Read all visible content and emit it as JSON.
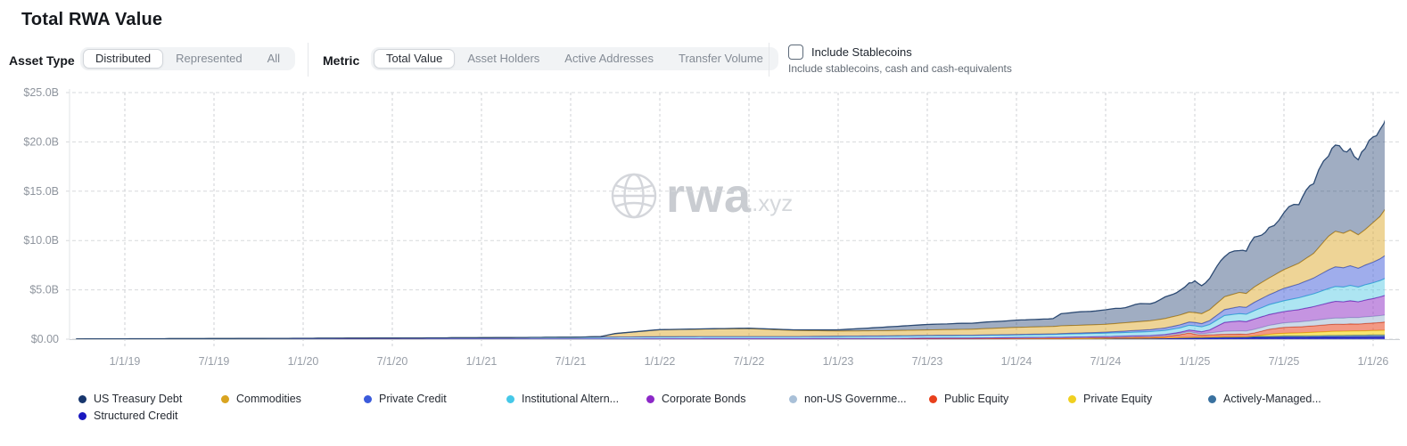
{
  "header": {
    "title": "Total RWA Value"
  },
  "controls": {
    "asset_type": {
      "label": "Asset Type",
      "options": [
        {
          "label": "Distributed",
          "selected": true
        },
        {
          "label": "Represented",
          "selected": false
        },
        {
          "label": "All",
          "selected": false
        }
      ]
    },
    "metric": {
      "label": "Metric",
      "options": [
        {
          "label": "Total Value",
          "selected": true
        },
        {
          "label": "Asset Holders",
          "selected": false
        },
        {
          "label": "Active Addresses",
          "selected": false
        },
        {
          "label": "Transfer Volume",
          "selected": false
        }
      ]
    },
    "stablecoins": {
      "label": "Include Stablecoins",
      "sublabel": "Include stablecoins, cash and cash-equivalents",
      "checked": false
    }
  },
  "watermark": {
    "brand": "rwa",
    "tld": ".xyz"
  },
  "chart_data": {
    "type": "area",
    "stacked": true,
    "title": "Total RWA Value",
    "unit": "USD billions",
    "grid": "dashed",
    "legend_position": "bottom",
    "ylim": [
      0,
      25
    ],
    "y_ticks": {
      "values": [
        25,
        20,
        15,
        10,
        5,
        0
      ],
      "labels": [
        "$25.0B",
        "$20.0B",
        "$15.0B",
        "$10.0B",
        "$5.0B",
        "$0.00"
      ]
    },
    "x_tick_labels": [
      "1/1/19",
      "7/1/19",
      "1/1/20",
      "7/1/20",
      "1/1/21",
      "7/1/21",
      "1/1/22",
      "7/1/22",
      "1/1/23",
      "7/1/23",
      "1/1/24",
      "7/1/24",
      "1/1/25",
      "7/1/25",
      "1/1/26"
    ],
    "x": [
      "2018-09-23",
      "2019-01-01",
      "2019-07-01",
      "2020-01-01",
      "2020-07-01",
      "2021-01-01",
      "2021-07-01",
      "2021-09-01",
      "2021-10-01",
      "2022-01-01",
      "2022-04-01",
      "2022-07-01",
      "2022-10-01",
      "2023-01-01",
      "2023-04-01",
      "2023-07-01",
      "2023-10-01",
      "2024-01-01",
      "2024-03-15",
      "2024-04-01",
      "2024-07-01",
      "2024-10-01",
      "2024-11-01",
      "2024-12-01",
      "2024-12-20",
      "2025-01-01",
      "2025-01-15",
      "2025-02-01",
      "2025-03-01",
      "2025-04-01",
      "2025-04-15",
      "2025-05-01",
      "2025-06-01",
      "2025-07-01",
      "2025-08-01",
      "2025-09-01",
      "2025-10-01",
      "2025-10-15",
      "2025-11-01",
      "2025-11-15",
      "2025-12-01",
      "2025-12-15",
      "2026-01-01",
      "2026-01-15",
      "2026-02-01",
      "2026-02-10"
    ],
    "series": [
      {
        "name": "US Treasury Debt",
        "dot": "#17366d",
        "stroke": "#2c4a73",
        "fill": "rgba(28,60,110,0.42)",
        "values": [
          0,
          0,
          0,
          0,
          0,
          0,
          0,
          0,
          0,
          0.02,
          0.03,
          0.04,
          0.06,
          0.12,
          0.35,
          0.55,
          0.62,
          0.72,
          0.8,
          1.25,
          1.45,
          1.8,
          2.1,
          2.6,
          3.0,
          3.1,
          2.9,
          3.3,
          3.9,
          4.4,
          4.2,
          4.9,
          5.3,
          5.6,
          6.1,
          6.9,
          8.3,
          8.6,
          8.2,
          8.4,
          7.7,
          8.1,
          8.6,
          8.9,
          9.5,
          9.4
        ]
      },
      {
        "name": "Commodities",
        "dot": "#d9a420",
        "stroke": "#c79324",
        "fill": "rgba(222,170,45,0.5)",
        "values": [
          0,
          0,
          0,
          0,
          0,
          0,
          0,
          0.05,
          0.35,
          0.7,
          0.75,
          0.8,
          0.62,
          0.52,
          0.53,
          0.55,
          0.6,
          0.72,
          0.75,
          0.78,
          0.8,
          0.9,
          0.95,
          1.0,
          1.0,
          1.0,
          1.0,
          1.1,
          1.3,
          1.45,
          1.4,
          1.55,
          1.7,
          1.9,
          2.1,
          2.5,
          3.4,
          3.6,
          3.5,
          3.6,
          3.4,
          3.6,
          4.0,
          4.3,
          4.9,
          4.9
        ]
      },
      {
        "name": "Private Credit",
        "dot": "#3b5bdb",
        "stroke": "#3a57d0",
        "fill": "rgba(80,105,220,0.55)",
        "values": [
          0,
          0,
          0,
          0,
          0,
          0,
          0,
          0,
          0,
          0.01,
          0.01,
          0.01,
          0.01,
          0.02,
          0.02,
          0.03,
          0.03,
          0.04,
          0.05,
          0.06,
          0.1,
          0.2,
          0.25,
          0.3,
          0.33,
          0.35,
          0.33,
          0.4,
          0.6,
          0.7,
          0.7,
          0.85,
          1.0,
          1.25,
          1.4,
          1.6,
          1.9,
          2.0,
          1.95,
          2.0,
          1.9,
          2.0,
          2.1,
          2.2,
          2.4,
          2.45
        ]
      },
      {
        "name": "Institutional Altern...",
        "dot": "#45c8e8",
        "stroke": "#38b6d6",
        "fill": "rgba(92,204,230,0.5)",
        "values": [
          0.02,
          0.03,
          0.05,
          0.08,
          0.1,
          0.13,
          0.18,
          0.19,
          0.2,
          0.2,
          0.21,
          0.21,
          0.21,
          0.22,
          0.24,
          0.25,
          0.26,
          0.28,
          0.3,
          0.32,
          0.35,
          0.4,
          0.42,
          0.45,
          0.48,
          0.5,
          0.5,
          0.55,
          0.7,
          0.75,
          0.75,
          0.85,
          1.0,
          1.1,
          1.2,
          1.3,
          1.45,
          1.5,
          1.5,
          1.55,
          1.5,
          1.55,
          1.6,
          1.65,
          1.75,
          1.75
        ]
      },
      {
        "name": "Corporate Bonds",
        "dot": "#8c28c8",
        "stroke": "#7e22b5",
        "fill": "rgba(150,60,200,0.55)",
        "values": [
          0,
          0,
          0,
          0,
          0,
          0,
          0,
          0,
          0,
          0,
          0,
          0,
          0,
          0,
          0,
          0,
          0,
          0.01,
          0.01,
          0.01,
          0.02,
          0.04,
          0.06,
          0.1,
          0.15,
          0.2,
          0.2,
          0.3,
          0.9,
          1.0,
          0.95,
          1.05,
          1.1,
          1.15,
          1.25,
          1.4,
          1.6,
          1.7,
          1.65,
          1.7,
          1.6,
          1.7,
          1.8,
          1.9,
          2.05,
          2.05
        ]
      },
      {
        "name": "non-US Governme...",
        "dot": "#a9c0d8",
        "stroke": "#9ab2cc",
        "fill": "rgba(176,198,220,0.65)",
        "values": [
          0,
          0.01,
          0.01,
          0.01,
          0.02,
          0.02,
          0.02,
          0.02,
          0.02,
          0.03,
          0.04,
          0.04,
          0.04,
          0.05,
          0.05,
          0.06,
          0.07,
          0.08,
          0.09,
          0.09,
          0.1,
          0.12,
          0.13,
          0.14,
          0.15,
          0.15,
          0.15,
          0.2,
          0.3,
          0.33,
          0.33,
          0.36,
          0.4,
          0.45,
          0.5,
          0.55,
          0.6,
          0.62,
          0.63,
          0.65,
          0.65,
          0.67,
          0.68,
          0.7,
          0.72,
          0.72
        ]
      },
      {
        "name": "Public Equity",
        "dot": "#e8401c",
        "stroke": "#d63c18",
        "fill": "rgba(235,85,50,0.6)",
        "values": [
          0,
          0,
          0,
          0,
          0,
          0,
          0,
          0,
          0,
          0.01,
          0.01,
          0.01,
          0.01,
          0.02,
          0.02,
          0.03,
          0.03,
          0.04,
          0.05,
          0.05,
          0.06,
          0.1,
          0.15,
          0.3,
          0.45,
          0.3,
          0.2,
          0.22,
          0.25,
          0.25,
          0.24,
          0.3,
          0.5,
          0.6,
          0.62,
          0.65,
          0.7,
          0.72,
          0.7,
          0.72,
          0.7,
          0.74,
          0.76,
          0.8,
          0.85,
          0.85
        ]
      },
      {
        "name": "Private Equity",
        "dot": "#f0d020",
        "stroke": "#e3c117",
        "fill": "rgba(245,218,50,0.7)",
        "values": [
          0,
          0,
          0,
          0,
          0,
          0,
          0,
          0,
          0,
          0,
          0,
          0,
          0,
          0,
          0,
          0,
          0,
          0,
          0,
          0,
          0,
          0,
          0,
          0,
          0,
          0,
          0,
          0,
          0,
          0,
          0,
          0.05,
          0.2,
          0.27,
          0.3,
          0.35,
          0.4,
          0.42,
          0.42,
          0.43,
          0.43,
          0.44,
          0.45,
          0.46,
          0.48,
          0.48
        ]
      },
      {
        "name": "Actively-Managed...",
        "dot": "#39719f",
        "stroke": "#336890",
        "fill": "rgba(70,120,165,0.6)",
        "values": [
          0,
          0,
          0,
          0,
          0,
          0,
          0,
          0,
          0,
          0,
          0,
          0,
          0,
          0,
          0,
          0,
          0,
          0,
          0,
          0,
          0.02,
          0.04,
          0.05,
          0.07,
          0.08,
          0.1,
          0.1,
          0.11,
          0.12,
          0.12,
          0.12,
          0.13,
          0.14,
          0.15,
          0.15,
          0.16,
          0.18,
          0.18,
          0.18,
          0.19,
          0.19,
          0.19,
          0.2,
          0.2,
          0.2,
          0.2
        ]
      },
      {
        "name": "Structured Credit",
        "dot": "#1a18c0",
        "stroke": "#1a18c0",
        "fill": "rgba(30,28,190,0.8)",
        "values": [
          0,
          0,
          0,
          0,
          0,
          0,
          0,
          0,
          0,
          0,
          0,
          0,
          0,
          0,
          0,
          0.02,
          0.02,
          0.03,
          0.04,
          0.04,
          0.06,
          0.07,
          0.08,
          0.09,
          0.1,
          0.1,
          0.1,
          0.11,
          0.13,
          0.14,
          0.14,
          0.15,
          0.16,
          0.18,
          0.18,
          0.19,
          0.2,
          0.2,
          0.21,
          0.21,
          0.22,
          0.22,
          0.23,
          0.23,
          0.24,
          0.24
        ]
      }
    ]
  }
}
